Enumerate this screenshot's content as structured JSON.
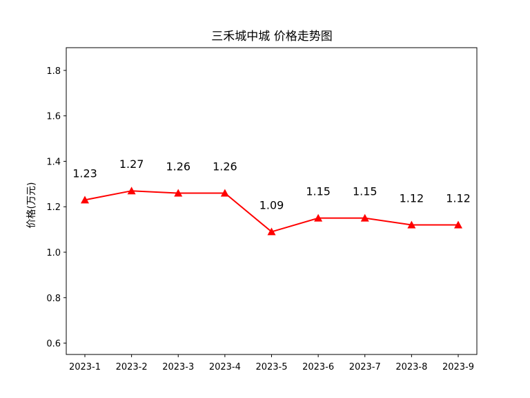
{
  "chart_data": {
    "type": "line",
    "title": "三禾城中城 价格走势图",
    "xlabel": "",
    "ylabel": "价格(万元)",
    "categories": [
      "2023-1",
      "2023-2",
      "2023-3",
      "2023-4",
      "2023-5",
      "2023-6",
      "2023-7",
      "2023-8",
      "2023-9"
    ],
    "series": [
      {
        "values": [
          1.23,
          1.27,
          1.26,
          1.26,
          1.09,
          1.15,
          1.15,
          1.12,
          1.12
        ],
        "data_labels": [
          "1.23",
          "1.27",
          "1.26",
          "1.26",
          "1.09",
          "1.15",
          "1.15",
          "1.12",
          "1.12"
        ],
        "color": "#ff0000",
        "marker": "triangle"
      }
    ],
    "ylim": [
      0.55,
      1.9
    ],
    "yticks": [
      0.6,
      0.8,
      1.0,
      1.2,
      1.4,
      1.6,
      1.8
    ],
    "ytick_labels": [
      "0.6",
      "0.8",
      "1.0",
      "1.2",
      "1.4",
      "1.6",
      "1.8"
    ],
    "grid": false,
    "legend": "none"
  }
}
